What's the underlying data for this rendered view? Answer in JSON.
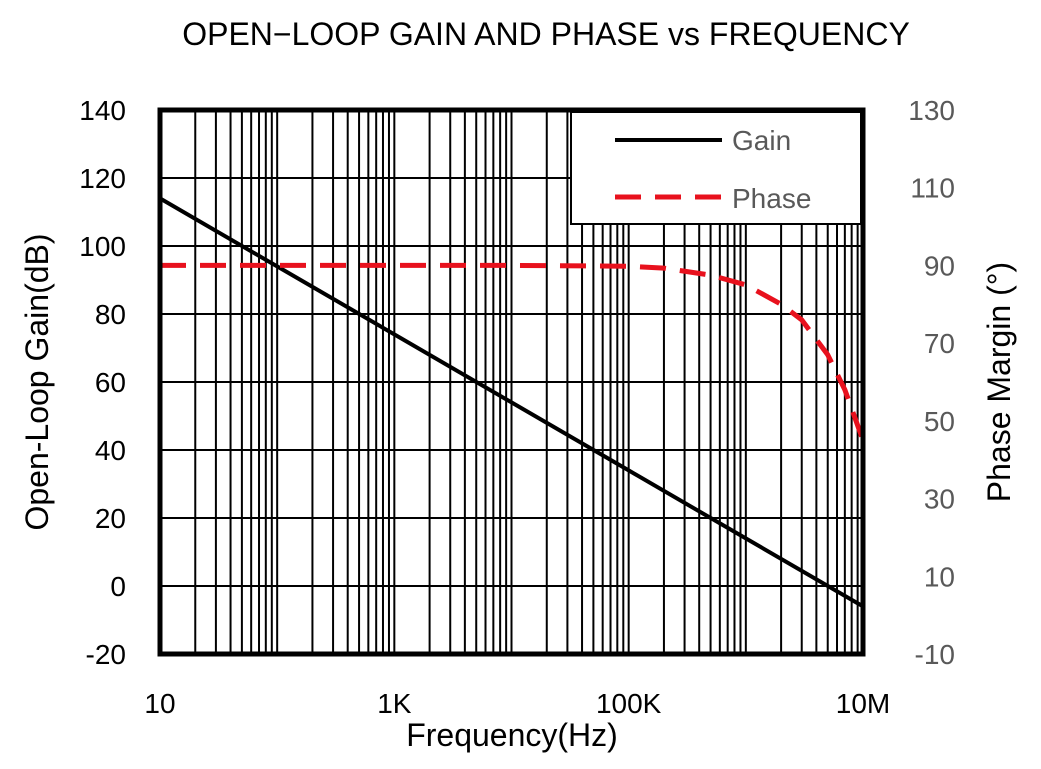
{
  "chart_data": {
    "type": "line",
    "title": "OPEN−LOOP GAIN AND PHASE vs FREQUENCY",
    "xlabel": "Frequency(Hz)",
    "ylabel": "Open-Loop Gain(dB)",
    "y2label": "Phase Margin (°)",
    "x_scale": "log",
    "xlim": [
      10,
      10000000
    ],
    "ylim": [
      -20,
      140
    ],
    "y2lim": [
      -10,
      130
    ],
    "x_tick_values": [
      10,
      1000,
      100000,
      10000000
    ],
    "x_ticks": [
      "10",
      "1K",
      "100K",
      "10M"
    ],
    "y_ticks": [
      "-20",
      "0",
      "20",
      "40",
      "60",
      "80",
      "100",
      "120",
      "140"
    ],
    "y2_ticks": [
      "-10",
      "10",
      "30",
      "50",
      "70",
      "90",
      "110",
      "130"
    ],
    "grid": true,
    "legend_position": "top-right",
    "series": [
      {
        "name": "Gain",
        "axis": "left",
        "color": "#000000",
        "style": "solid",
        "x": [
          10,
          100,
          1000,
          10000,
          100000,
          1000000,
          10000000
        ],
        "y": [
          114,
          94,
          74,
          54,
          34,
          14,
          -6
        ]
      },
      {
        "name": "Phase",
        "axis": "right",
        "color": "#e8111d",
        "style": "dashed",
        "x": [
          10,
          1000,
          10000,
          100000,
          200000,
          500000,
          1000000,
          2000000,
          3000000,
          5000000,
          7000000,
          10000000
        ],
        "y": [
          90,
          90,
          90,
          89.8,
          89.3,
          87.5,
          85,
          80,
          76,
          67,
          58,
          45
        ]
      }
    ]
  }
}
